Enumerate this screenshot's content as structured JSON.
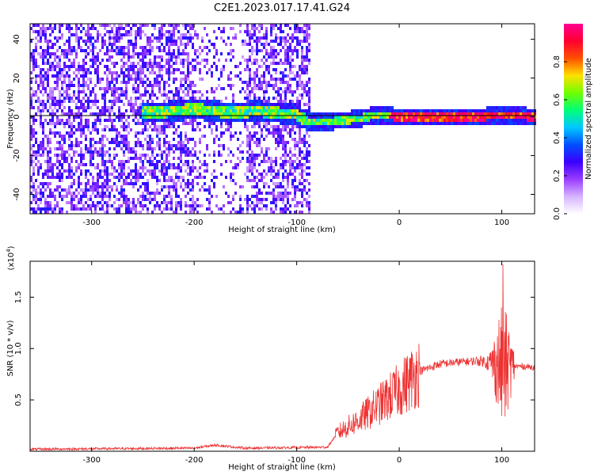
{
  "page_title": "C2E1.2023.017.17.41.G24",
  "chart_data": [
    {
      "type": "heatmap",
      "xlabel": "Height of straight line (km)",
      "ylabel": "Frequency (Hz)",
      "xlim": [
        -360,
        132
      ],
      "ylim": [
        -50,
        48
      ],
      "xticks": [
        -300,
        -200,
        -100,
        0,
        100
      ],
      "yticks": [
        -40,
        -20,
        0,
        20,
        40
      ],
      "colorbar": {
        "label": "Normalized spectral amplitude",
        "range": [
          0.0,
          1.0
        ],
        "ticks": [
          0.0,
          0.2,
          0.4,
          0.6,
          0.8
        ],
        "colors": [
          "#ffffff",
          "#d6b4ff",
          "#9a3cff",
          "#3a00ff",
          "#0050ff",
          "#00c8ff",
          "#00ff78",
          "#70ff00",
          "#ffe000",
          "#ff5000",
          "#ff0030",
          "#ff0090"
        ]
      },
      "ridge": [
        {
          "x": -240,
          "y": 2
        },
        {
          "x": -220,
          "y": 3
        },
        {
          "x": -200,
          "y": 4
        },
        {
          "x": -180,
          "y": 3
        },
        {
          "x": -160,
          "y": 2
        },
        {
          "x": -140,
          "y": 3
        },
        {
          "x": -120,
          "y": 2
        },
        {
          "x": -100,
          "y": 1
        },
        {
          "x": -90,
          "y": -2
        },
        {
          "x": -80,
          "y": -3
        },
        {
          "x": -60,
          "y": -2
        },
        {
          "x": -40,
          "y": -1
        },
        {
          "x": -20,
          "y": 1
        },
        {
          "x": 0,
          "y": 0
        },
        {
          "x": 50,
          "y": 0
        },
        {
          "x": 80,
          "y": 0
        },
        {
          "x": 100,
          "y": 1
        },
        {
          "x": 132,
          "y": 0
        }
      ],
      "noise_extent": [
        -360,
        -88
      ],
      "baseline_y": 1
    },
    {
      "type": "line",
      "xlabel": "Height of straight line (km)",
      "ylabel": "SNR (10 * v/v)",
      "y_multiplier": "(x10^4)",
      "y_multiplier_base": "(x10",
      "y_multiplier_exp": "4",
      "y_multiplier_close": ")",
      "xlim": [
        -360,
        132
      ],
      "ylim": [
        0,
        1.85
      ],
      "xticks": [
        -300,
        -200,
        -100,
        0,
        100
      ],
      "yticks": [
        0.5,
        1.0,
        1.5
      ],
      "ytick_labels": [
        "0.5",
        "1.0",
        "1.5"
      ],
      "color": "#ee3333",
      "envelope": [
        {
          "x": -360,
          "y": 0.02
        },
        {
          "x": -200,
          "y": 0.03
        },
        {
          "x": -180,
          "y": 0.06
        },
        {
          "x": -150,
          "y": 0.03
        },
        {
          "x": -70,
          "y": 0.04
        },
        {
          "x": -60,
          "y": 0.18
        },
        {
          "x": -40,
          "y": 0.3
        },
        {
          "x": -20,
          "y": 0.45
        },
        {
          "x": 0,
          "y": 0.6
        },
        {
          "x": 20,
          "y": 0.78
        },
        {
          "x": 40,
          "y": 0.85
        },
        {
          "x": 60,
          "y": 0.87
        },
        {
          "x": 80,
          "y": 0.88
        },
        {
          "x": 95,
          "y": 0.85
        },
        {
          "x": 100,
          "y": 0.82
        },
        {
          "x": 110,
          "y": 0.83
        },
        {
          "x": 132,
          "y": 0.82
        }
      ],
      "peak": {
        "x": 101,
        "y": 1.82
      }
    }
  ]
}
